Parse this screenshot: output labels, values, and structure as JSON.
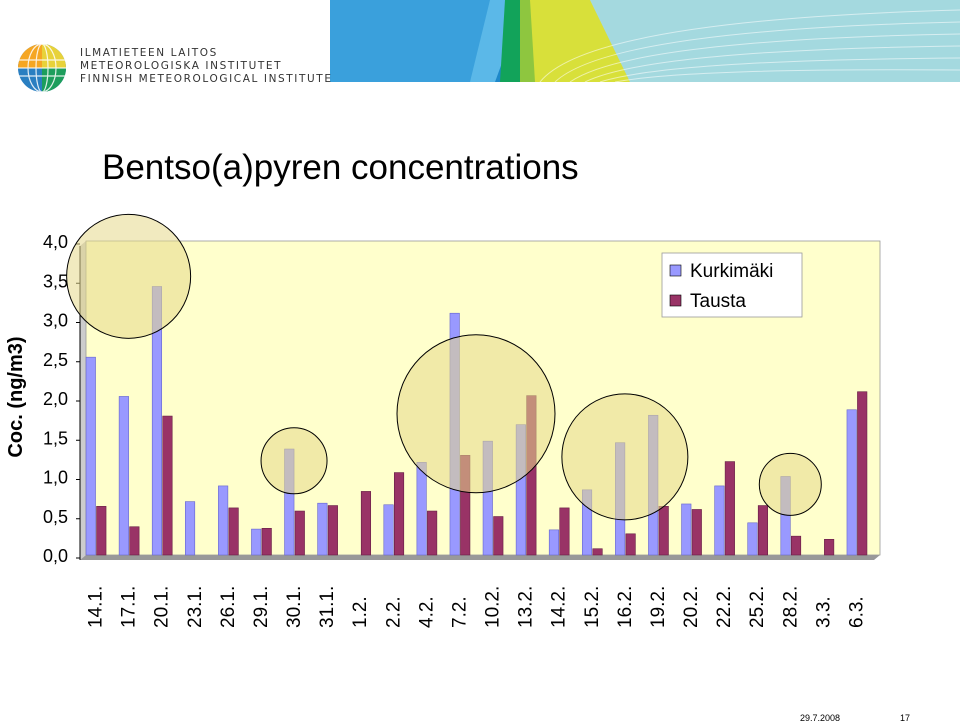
{
  "header": {
    "org_line1": "ILMATIETEEN LAITOS",
    "org_line2": "METEOROLOGISKA INSTITUTET",
    "org_line3": "FINNISH METEOROLOGICAL INSTITUTE",
    "logo_icon": "fmi-globe-logo-icon",
    "banner_colors": [
      "#1e88c9",
      "#4fb3e6",
      "#9ed8f2",
      "#f2e01f",
      "#c9dc3a",
      "#12a35a",
      "#8ec63f"
    ]
  },
  "slide_title": "Bentso(a)pyren concentrations",
  "chart_data": {
    "type": "bar",
    "title": "",
    "ylabel": "Coc. (ng/m3)",
    "xlabel": "",
    "ylim": [
      0,
      4
    ],
    "yticks": [
      "0,0",
      "0,5",
      "1,0",
      "1,5",
      "2,0",
      "2,5",
      "3,0",
      "3,5",
      "4,0"
    ],
    "categories": [
      "14.1.",
      "17.1.",
      "20.1.",
      "23.1.",
      "26.1.",
      "29.1.",
      "30.1.",
      "31.1.",
      "1.2.",
      "2.2.",
      "4.2.",
      "7.2.",
      "10.2.",
      "13.2.",
      "14.2.",
      "15.2.",
      "16.2.",
      "19.2.",
      "20.2.",
      "22.2.",
      "25.2.",
      "28.2.",
      "3.3.",
      "6.3."
    ],
    "series": [
      {
        "name": "Kurkimäki",
        "color": "#9999ff",
        "values": [
          2.52,
          2.02,
          3.42,
          0.68,
          0.88,
          0.33,
          1.35,
          0.66,
          null,
          0.64,
          1.18,
          3.08,
          1.45,
          1.66,
          0.32,
          0.83,
          1.43,
          1.78,
          0.65,
          0.88,
          0.41,
          1.0,
          null,
          1.85
        ]
      },
      {
        "name": "Tausta",
        "color": "#993366",
        "values": [
          0.62,
          0.36,
          1.77,
          null,
          0.6,
          0.34,
          0.56,
          0.63,
          0.81,
          1.05,
          0.56,
          1.27,
          0.49,
          2.03,
          0.6,
          0.08,
          0.27,
          0.62,
          0.58,
          1.19,
          0.63,
          0.24,
          0.2,
          2.08
        ]
      }
    ],
    "legend_position": "top-right",
    "plot_background": "#ffffcc",
    "highlight_circles": [
      {
        "label": "14.1.–20.1."
      },
      {
        "label": "30.1."
      },
      {
        "label": "4.2.–13.2."
      },
      {
        "label": "15.2.–19.2."
      },
      {
        "label": "28.2."
      }
    ]
  },
  "footer": {
    "date": "29.7.2008",
    "page": "17"
  }
}
